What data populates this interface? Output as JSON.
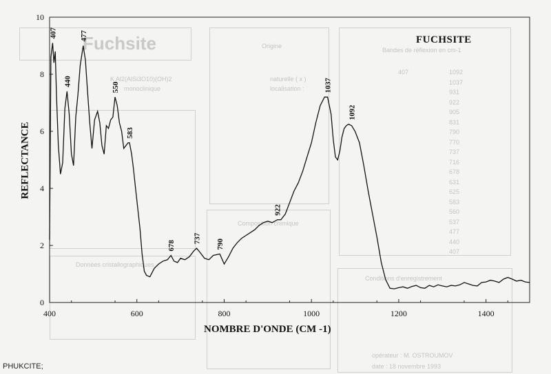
{
  "chart_data": {
    "type": "line",
    "title": "FUCHSITE",
    "xlabel": "NOMBRE D'ONDE (CM -1)",
    "ylabel": "REFLECTANCE",
    "xlim": [
      400,
      1500
    ],
    "ylim": [
      0,
      10
    ],
    "xticks": [
      400,
      600,
      800,
      1000,
      1200,
      1400
    ],
    "yticks": [
      0,
      2,
      4,
      6,
      8,
      10
    ],
    "grid": false,
    "series": [
      {
        "x": [
          400,
          403,
          407,
          410,
          413,
          416,
          420,
          425,
          430,
          435,
          440,
          445,
          450,
          455,
          460,
          465,
          470,
          477,
          482,
          487,
          492,
          497,
          503,
          510,
          515,
          520,
          525,
          530,
          535,
          540,
          545,
          550,
          555,
          560,
          565,
          570,
          575,
          580,
          583,
          588,
          592,
          597,
          602,
          607,
          612,
          617,
          622,
          630,
          640,
          650,
          660,
          670,
          678,
          685,
          693,
          700,
          710,
          720,
          730,
          737,
          745,
          755,
          765,
          775,
          790,
          800,
          810,
          820,
          830,
          840,
          850,
          860,
          870,
          880,
          890,
          900,
          910,
          922,
          930,
          940,
          950,
          960,
          970,
          980,
          990,
          1000,
          1010,
          1020,
          1030,
          1037,
          1045,
          1050,
          1055,
          1060,
          1065,
          1070,
          1075,
          1080,
          1085,
          1092,
          1100,
          1110,
          1120,
          1130,
          1140,
          1150,
          1160,
          1170,
          1180,
          1190,
          1200,
          1210,
          1220,
          1230,
          1240,
          1250,
          1260,
          1270,
          1280,
          1290,
          1300,
          1310,
          1320,
          1330,
          1340,
          1350,
          1360,
          1370,
          1380,
          1390,
          1400,
          1410,
          1420,
          1430,
          1440,
          1450,
          1460,
          1470,
          1480,
          1490,
          1500
        ],
        "y": [
          2.2,
          8.6,
          9.1,
          8.4,
          8.8,
          7.2,
          5.5,
          4.5,
          4.9,
          6.8,
          7.4,
          6.6,
          5.2,
          4.8,
          6.5,
          7.3,
          8.3,
          9.0,
          8.5,
          7.4,
          6.3,
          5.4,
          6.4,
          6.7,
          6.3,
          5.5,
          5.2,
          6.2,
          6.1,
          6.4,
          6.5,
          7.2,
          6.9,
          6.3,
          6.0,
          5.4,
          5.5,
          5.6,
          5.6,
          5.2,
          4.7,
          4.0,
          3.3,
          2.6,
          1.7,
          1.1,
          0.95,
          0.9,
          1.2,
          1.35,
          1.45,
          1.5,
          1.65,
          1.45,
          1.4,
          1.55,
          1.5,
          1.6,
          1.8,
          1.9,
          1.75,
          1.55,
          1.5,
          1.65,
          1.7,
          1.35,
          1.6,
          1.9,
          2.1,
          2.25,
          2.35,
          2.45,
          2.55,
          2.7,
          2.8,
          2.85,
          2.8,
          2.9,
          2.9,
          3.1,
          3.5,
          3.9,
          4.2,
          4.6,
          5.1,
          5.6,
          6.3,
          6.9,
          7.2,
          7.2,
          6.6,
          5.7,
          5.1,
          5.0,
          5.3,
          5.8,
          6.1,
          6.2,
          6.25,
          6.2,
          6.0,
          5.6,
          4.8,
          3.9,
          3.1,
          2.3,
          1.4,
          0.8,
          0.5,
          0.48,
          0.52,
          0.55,
          0.5,
          0.56,
          0.6,
          0.52,
          0.5,
          0.6,
          0.55,
          0.62,
          0.58,
          0.55,
          0.6,
          0.58,
          0.62,
          0.7,
          0.65,
          0.6,
          0.58,
          0.7,
          0.72,
          0.78,
          0.75,
          0.7,
          0.82,
          0.88,
          0.82,
          0.75,
          0.78,
          0.72,
          0.7
        ]
      }
    ],
    "annotations": [
      {
        "label": "407",
        "x": 407,
        "y": 9.1
      },
      {
        "label": "440",
        "x": 440,
        "y": 7.4
      },
      {
        "label": "477",
        "x": 477,
        "y": 9.0
      },
      {
        "label": "550",
        "x": 550,
        "y": 7.2
      },
      {
        "label": "583",
        "x": 583,
        "y": 5.6
      },
      {
        "label": "678",
        "x": 678,
        "y": 1.65
      },
      {
        "label": "737",
        "x": 737,
        "y": 1.9
      },
      {
        "label": "790",
        "x": 790,
        "y": 1.7
      },
      {
        "label": "922",
        "x": 922,
        "y": 2.9
      },
      {
        "label": "1037",
        "x": 1037,
        "y": 7.2
      },
      {
        "label": "1092",
        "x": 1092,
        "y": 6.25
      }
    ]
  },
  "caption": "PHUKCITE;",
  "background_card": {
    "title": "Fuchsite",
    "formula": "K Al2(AlSi3O10)(OH)2",
    "system": "monoclinique",
    "origin": "Origine",
    "origin_natural": "naturelle ( x )",
    "origin_locality": "localisation :",
    "band_header": "Bandes de réflexion en cm-1",
    "bands": [
      "1092",
      "1037",
      "931",
      "922",
      "905",
      "831",
      "790",
      "770",
      "737",
      "716",
      "678",
      "631",
      "625",
      "583",
      "560",
      "537",
      "477",
      "440",
      "407"
    ],
    "bands_col2": "407",
    "composition": "Composition chimique",
    "crystallo": "Données cristallographiques",
    "conditions": "Conditions d'enregistrement",
    "operator": "opérateur : M. OSTROUMOV",
    "date": "date : 18 novembre 1993"
  },
  "colors": {
    "line": "#111111",
    "frame": "#222222",
    "ghost": "#c8c8c8"
  }
}
